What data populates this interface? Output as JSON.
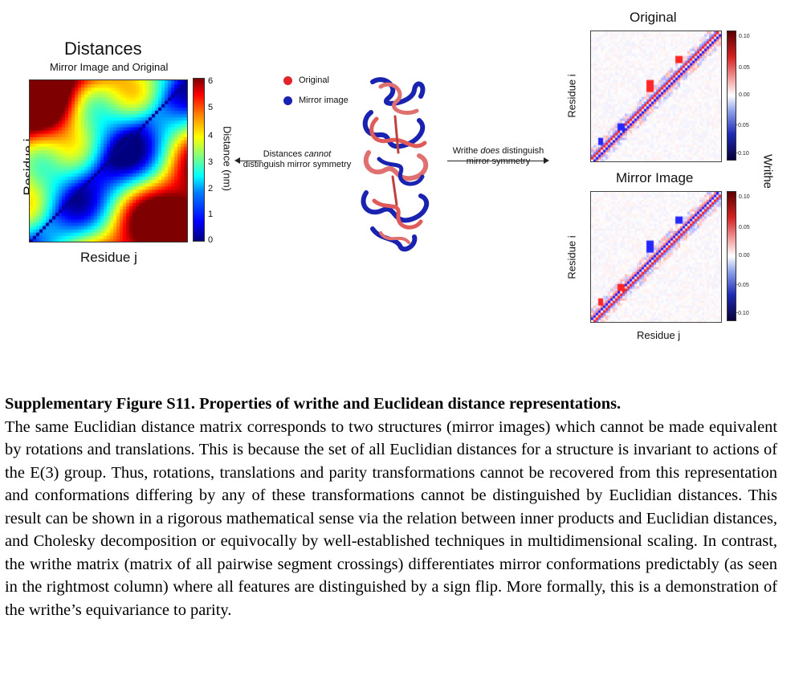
{
  "left_panel": {
    "title": "Distances",
    "subtitle": "Mirror Image and Original",
    "ylabel": "Residue i",
    "xlabel": "Residue j",
    "colorbar_label": "Distance (nm)",
    "colorbar_ticks": [
      "0",
      "1",
      "2",
      "3",
      "4",
      "5",
      "6"
    ],
    "colorbar_range": [
      0,
      6
    ],
    "colormap": "jet"
  },
  "middle": {
    "legend": [
      {
        "label": "Original",
        "color": "#e0262b"
      },
      {
        "label": "Mirror image",
        "color": "#1a22b0"
      }
    ],
    "left_arrow_text_line1": "Distances",
    "left_arrow_text_em": "cannot",
    "left_arrow_text_line2": "distinguish mirror symmetry",
    "right_arrow_text_line1": "Writhe",
    "right_arrow_text_em": "does",
    "right_arrow_text_line1_end": "distinguish",
    "right_arrow_text_line2": "mirror symmetry"
  },
  "right_panel": {
    "top_title": "Original",
    "bottom_title": "Mirror Image",
    "ylabel": "Residue i",
    "xlabel": "Residue j",
    "colorbar_label": "Writhe",
    "colorbar_ticks": [
      "0.10",
      "0.05",
      "0.00",
      "−0.05",
      "−0.10"
    ],
    "colorbar_range": [
      -0.1,
      0.1
    ],
    "colormap": "seismic"
  },
  "caption": {
    "title": "Supplementary Figure S11. Properties of writhe and Euclidean distance representations.",
    "body": "The same Euclidian distance matrix corresponds to two structures (mirror images) which cannot be made equivalent by rotations and translations. This is because the set of all Euclidian distances for a structure is invariant to actions of the E(3) group. Thus, rotations, translations and parity transformations cannot be recovered from this representation and conformations differing by any of these transformations cannot be distinguished by Euclidian distances. This result can be shown in a rigorous mathematical sense via the relation between inner products and Euclidian distances, and Cholesky decomposition or equivocally by well-established techniques in multidimensional scaling. In contrast, the writhe matrix (matrix of all pairwise segment crossings) differentiates mirror conformations predictably (as seen in the rightmost column) where all features are distinguished by a sign flip. More formally, this is a demonstration of the writhe’s equivariance to parity."
  }
}
